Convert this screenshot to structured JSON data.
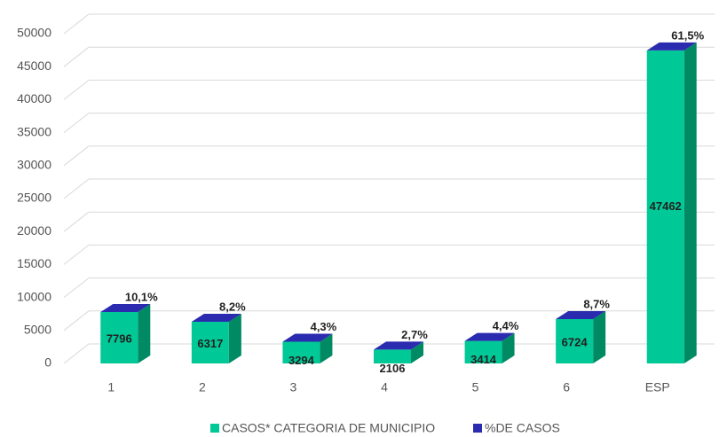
{
  "chart_data": {
    "type": "bar3d",
    "categories": [
      "1",
      "2",
      "3",
      "4",
      "5",
      "6",
      "ESP"
    ],
    "series": [
      {
        "name": "CASOS* CATEGORIA DE MUNICIPIO",
        "color": "#00c896",
        "values": [
          7796,
          6317,
          3294,
          2106,
          3414,
          6724,
          47462
        ]
      },
      {
        "name": "%DE CASOS",
        "color": "#2b2bb0",
        "values": [
          10.1,
          8.2,
          4.3,
          2.7,
          4.4,
          8.7,
          61.5
        ],
        "value_labels": [
          "10,1%",
          "8,2%",
          "4,3%",
          "2,7%",
          "4,4%",
          "8,7%",
          "61,5%"
        ]
      }
    ],
    "ylim": [
      0,
      50000
    ],
    "yticks": [
      0,
      5000,
      10000,
      15000,
      20000,
      25000,
      30000,
      35000,
      40000,
      45000,
      50000
    ],
    "grid": true
  }
}
